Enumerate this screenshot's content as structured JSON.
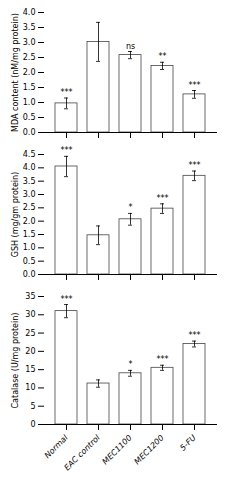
{
  "chart_data": [
    {
      "type": "bar",
      "categories": [
        "Normal",
        "EAC control",
        "MEC1100",
        "MEC1200",
        "5-FU"
      ],
      "values": [
        0.97,
        3.02,
        2.58,
        2.22,
        1.27
      ],
      "errors": [
        0.18,
        0.65,
        0.12,
        0.12,
        0.13
      ],
      "annotations": [
        "***",
        null,
        "ns",
        "**",
        "***"
      ],
      "ylabel": "MDA content (nM/mg protein)",
      "ylim": [
        0,
        4.0
      ],
      "yticks": [
        {
          "value": 0,
          "label": "0.0"
        },
        {
          "value": 0.5,
          "label": "0.5"
        },
        {
          "value": 1.0,
          "label": "1.0"
        },
        {
          "value": 1.5,
          "label": "1.5"
        },
        {
          "value": 2.0,
          "label": "2.0"
        },
        {
          "value": 2.5,
          "label": "2.5"
        },
        {
          "value": 3.0,
          "label": "3.0"
        },
        {
          "value": 3.5,
          "label": "3.5"
        },
        {
          "value": 4.0,
          "label": "4.0"
        }
      ],
      "color": "white",
      "tick_labels": "y"
    },
    {
      "type": "bar",
      "categories": [
        "Normal",
        "EAC control",
        "MEC1100",
        "MEC1200",
        "5-FU"
      ],
      "values": [
        4.05,
        1.47,
        2.07,
        2.47,
        3.7
      ],
      "errors": [
        0.38,
        0.35,
        0.22,
        0.18,
        0.18
      ],
      "annotations": [
        "***",
        null,
        "*",
        "***",
        "***"
      ],
      "ylabel": "GSH (mg/gm protein)",
      "ylim": [
        0,
        4.5
      ],
      "yticks": [
        {
          "value": 0,
          "label": "0.0"
        },
        {
          "value": 0.5,
          "label": "0.5"
        },
        {
          "value": 1.0,
          "label": "1.0"
        },
        {
          "value": 1.5,
          "label": "1.5"
        },
        {
          "value": 2.0,
          "label": "2.0"
        },
        {
          "value": 2.5,
          "label": "2.5"
        },
        {
          "value": 3.0,
          "label": "3.0"
        },
        {
          "value": 3.5,
          "label": "3.5"
        },
        {
          "value": 4.0,
          "label": "4.0"
        },
        {
          "value": 4.5,
          "label": "4.5"
        }
      ],
      "color": "white",
      "tick_labels": "y"
    },
    {
      "type": "bar",
      "categories": [
        "Normal",
        "EAC control",
        "MEC1100",
        "MEC1200",
        "5-FU"
      ],
      "values": [
        31.0,
        11.2,
        14.0,
        15.5,
        22.0
      ],
      "errors": [
        1.8,
        1.0,
        0.8,
        0.7,
        0.8
      ],
      "annotations": [
        "***",
        null,
        "*",
        "***",
        "***"
      ],
      "ylabel": "Catalase (U/mg protein)",
      "ylim": [
        0,
        35
      ],
      "yticks": [
        0,
        5,
        10,
        15,
        20,
        25,
        30,
        35
      ],
      "color": "white"
    }
  ]
}
